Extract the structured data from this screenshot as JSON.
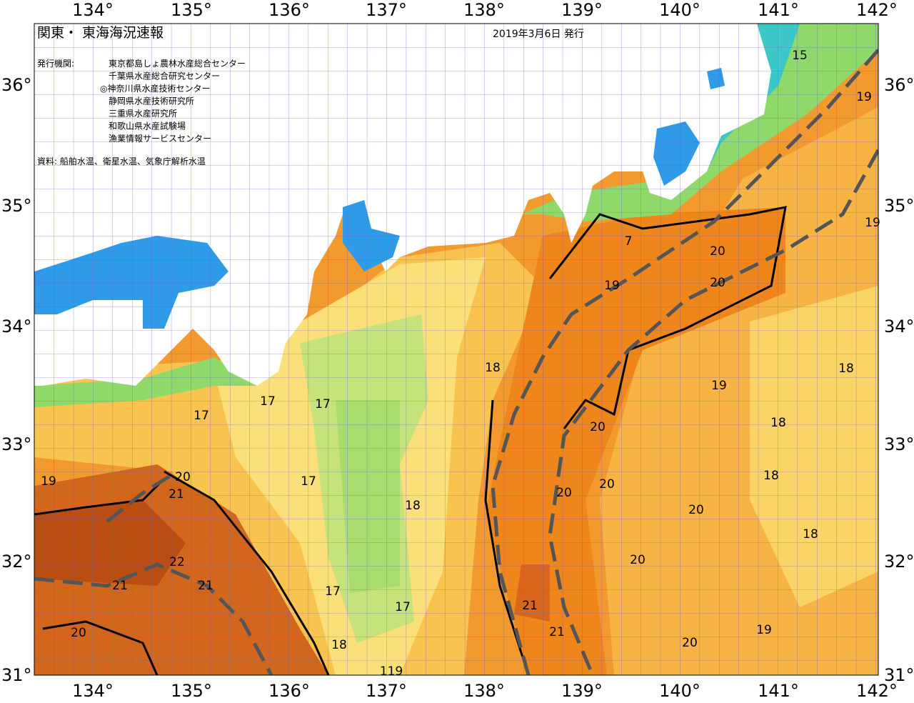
{
  "header": {
    "title": "関東・ 東海海況速報",
    "date": "2019年3月6日 発行",
    "agency_label": "発行機関:",
    "agencies": [
      "東京都島しょ農林水産総合センター",
      "千葉県水産総合研究センター",
      "◎神奈川県水産技術センター",
      "静岡県水産技術研究所",
      "三重県水産研究所",
      "和歌山県水産試験場",
      "漁業情報サービスセンター"
    ],
    "source": "資料: 船舶水温、衛星水温、気象庁解析水温"
  },
  "map": {
    "lon_labels": [
      "134°",
      "135°",
      "136°",
      "137°",
      "138°",
      "139°",
      "140°",
      "141°",
      "142°"
    ],
    "lat_labels": [
      "36°",
      "35°",
      "34°",
      "33°",
      "32°",
      "31°"
    ],
    "contour_labels": [
      "15",
      "19",
      "19",
      "7",
      "20",
      "20",
      "19",
      "18",
      "19",
      "18",
      "18",
      "17",
      "17",
      "17",
      "17",
      "20",
      "18",
      "20",
      "20",
      "18",
      "19",
      "20",
      "21",
      "20",
      "22",
      "21",
      "21",
      "18",
      "17",
      "17",
      "21",
      "21",
      "20",
      "20",
      "18",
      "119",
      "20",
      "19"
    ]
  }
}
